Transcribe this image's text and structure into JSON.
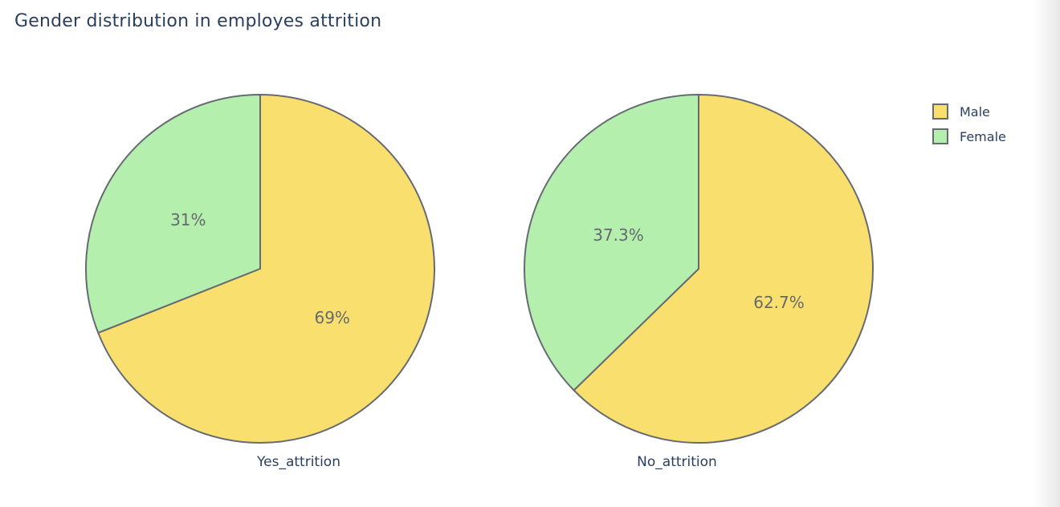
{
  "title": "Gender distribution in employes attrition",
  "colors": {
    "male": "#f8df6e",
    "female": "#b4efad",
    "slice_outline": "#666b73",
    "percent_label": "#666970",
    "text": "#2a3f5f"
  },
  "legend": {
    "position": "top-right",
    "items": [
      {
        "label": "Male",
        "color": "#f8df6e"
      },
      {
        "label": "Female",
        "color": "#b4efad"
      }
    ]
  },
  "chart_data": [
    {
      "type": "pie",
      "title": "Yes_attrition",
      "labels": [
        "Male",
        "Female"
      ],
      "values": [
        69,
        31
      ],
      "display_labels": [
        "69%",
        "31%"
      ],
      "colors": [
        "#f8df6e",
        "#b4efad"
      ],
      "start_angle_deg": 0,
      "direction": "clockwise",
      "legend_position": "top-right"
    },
    {
      "type": "pie",
      "title": "No_attrition",
      "labels": [
        "Male",
        "Female"
      ],
      "values": [
        62.7,
        37.3
      ],
      "display_labels": [
        "62.7%",
        "37.3%"
      ],
      "colors": [
        "#f8df6e",
        "#b4efad"
      ],
      "start_angle_deg": 0,
      "direction": "clockwise",
      "legend_position": "top-right"
    }
  ]
}
